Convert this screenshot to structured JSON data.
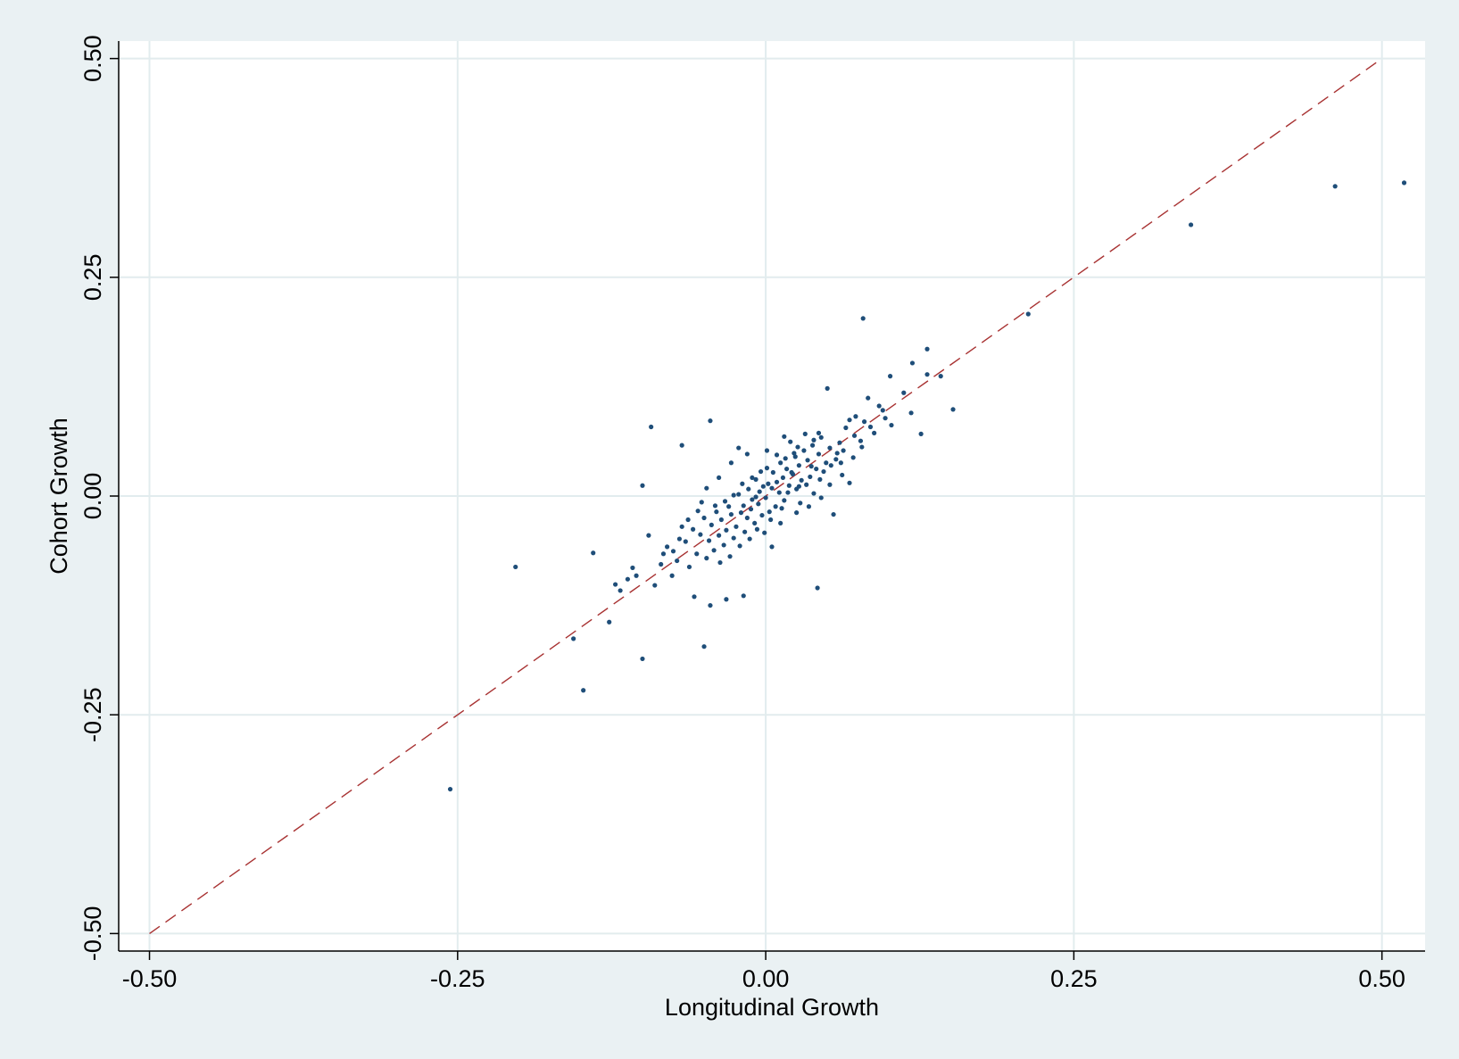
{
  "chart_data": {
    "type": "scatter",
    "title": "",
    "xlabel": "Longitudinal Growth",
    "ylabel": "Cohort Growth",
    "xlim": [
      -0.525,
      0.535
    ],
    "ylim": [
      -0.52,
      0.52
    ],
    "x_ticks": [
      -0.5,
      -0.25,
      0.0,
      0.25,
      0.5
    ],
    "x_tick_labels": [
      "-0.50",
      "-0.25",
      "0.00",
      "0.25",
      "0.50"
    ],
    "y_ticks": [
      -0.5,
      -0.25,
      0.0,
      0.25,
      0.5
    ],
    "y_tick_labels": [
      "-0.50",
      "-0.25",
      "0.00",
      "0.25",
      "0.50"
    ],
    "grid": true,
    "legend": "none",
    "colors": {
      "points": "#1f4e79",
      "reference_line": "#a83232",
      "grid": "#e2ecee",
      "background": "#eaf1f3",
      "plot_area": "#ffffff"
    },
    "reference_line": {
      "style": "dashed",
      "points": [
        [
          -0.5,
          -0.5
        ],
        [
          0.5,
          0.5
        ]
      ]
    },
    "series": [
      {
        "points": [
          [
            0.518,
            0.358
          ],
          [
            0.462,
            0.354
          ],
          [
            0.345,
            0.31
          ],
          [
            0.213,
            0.208
          ],
          [
            0.079,
            0.203
          ],
          [
            -0.256,
            -0.335
          ],
          [
            -0.203,
            -0.081
          ],
          [
            -0.148,
            -0.222
          ],
          [
            -0.156,
            -0.163
          ],
          [
            -0.14,
            -0.065
          ],
          [
            -0.127,
            -0.144
          ],
          [
            -0.1,
            -0.186
          ],
          [
            -0.05,
            -0.172
          ],
          [
            -0.1,
            0.012
          ],
          [
            -0.093,
            0.079
          ],
          [
            -0.068,
            0.058
          ],
          [
            -0.045,
            0.086
          ],
          [
            0.042,
            -0.105
          ],
          [
            0.152,
            0.099
          ],
          [
            0.142,
            0.137
          ],
          [
            0.131,
            0.168
          ],
          [
            0.131,
            0.139
          ],
          [
            0.119,
            0.152
          ],
          [
            0.126,
            0.071
          ],
          [
            0.118,
            0.095
          ],
          [
            0.112,
            0.118
          ],
          [
            0.101,
            0.137
          ],
          [
            0.092,
            0.103
          ],
          [
            0.083,
            0.112
          ],
          [
            0.08,
            0.085
          ],
          [
            0.073,
            0.091
          ],
          [
            0.068,
            0.087
          ],
          [
            0.065,
            0.078
          ],
          [
            0.05,
            0.123
          ],
          [
            0.102,
            0.081
          ],
          [
            0.097,
            0.089
          ],
          [
            0.085,
            0.079
          ],
          [
            0.077,
            0.063
          ],
          [
            0.072,
            0.069
          ],
          [
            0.063,
            0.052
          ],
          [
            0.06,
            0.061
          ],
          [
            0.057,
            0.042
          ],
          [
            0.052,
            0.055
          ],
          [
            0.049,
            0.038
          ],
          [
            0.045,
            0.067
          ],
          [
            0.043,
            0.048
          ],
          [
            0.041,
            0.031
          ],
          [
            0.038,
            0.058
          ],
          [
            0.036,
            0.022
          ],
          [
            0.034,
            0.041
          ],
          [
            0.031,
            0.052
          ],
          [
            0.029,
            0.018
          ],
          [
            0.027,
            0.035
          ],
          [
            0.025,
            0.008
          ],
          [
            0.024,
            0.045
          ],
          [
            0.022,
            0.025
          ],
          [
            0.02,
            0.062
          ],
          [
            0.019,
            0.012
          ],
          [
            0.017,
            0.031
          ],
          [
            0.015,
            -0.005
          ],
          [
            0.014,
            0.021
          ],
          [
            0.012,
            0.038
          ],
          [
            0.011,
            0.004
          ],
          [
            0.009,
            0.016
          ],
          [
            0.008,
            -0.012
          ],
          [
            0.006,
            0.027
          ],
          [
            0.005,
            0.009
          ],
          [
            0.003,
            -0.018
          ],
          [
            0.002,
            0.014
          ],
          [
            0.001,
            0.032
          ],
          [
            0.0,
            -0.002
          ],
          [
            -0.002,
            0.011
          ],
          [
            -0.003,
            -0.022
          ],
          [
            -0.005,
            0.005
          ],
          [
            -0.006,
            -0.009
          ],
          [
            -0.008,
            0.019
          ],
          [
            -0.009,
            -0.031
          ],
          [
            -0.011,
            -0.004
          ],
          [
            -0.012,
            -0.015
          ],
          [
            -0.014,
            0.008
          ],
          [
            -0.015,
            -0.025
          ],
          [
            -0.017,
            -0.041
          ],
          [
            -0.018,
            -0.011
          ],
          [
            -0.02,
            -0.019
          ],
          [
            -0.022,
            0.002
          ],
          [
            -0.024,
            -0.035
          ],
          [
            -0.026,
            -0.048
          ],
          [
            -0.028,
            -0.021
          ],
          [
            -0.03,
            -0.012
          ],
          [
            -0.032,
            -0.039
          ],
          [
            -0.034,
            -0.056
          ],
          [
            -0.036,
            -0.027
          ],
          [
            -0.038,
            -0.045
          ],
          [
            -0.04,
            -0.018
          ],
          [
            -0.042,
            -0.062
          ],
          [
            -0.044,
            -0.033
          ],
          [
            -0.046,
            -0.051
          ],
          [
            -0.048,
            -0.071
          ],
          [
            -0.05,
            -0.025
          ],
          [
            -0.053,
            -0.044
          ],
          [
            -0.056,
            -0.066
          ],
          [
            -0.059,
            -0.038
          ],
          [
            -0.062,
            -0.081
          ],
          [
            -0.065,
            -0.052
          ],
          [
            -0.068,
            -0.035
          ],
          [
            -0.072,
            -0.074
          ],
          [
            -0.076,
            -0.091
          ],
          [
            -0.08,
            -0.058
          ],
          [
            -0.085,
            -0.078
          ],
          [
            -0.09,
            -0.102
          ],
          [
            -0.095,
            -0.045
          ],
          [
            -0.105,
            -0.091
          ],
          [
            -0.108,
            -0.082
          ],
          [
            -0.112,
            -0.095
          ],
          [
            -0.118,
            -0.108
          ],
          [
            -0.122,
            -0.101
          ],
          [
            -0.058,
            -0.115
          ],
          [
            -0.045,
            -0.125
          ],
          [
            -0.032,
            -0.118
          ],
          [
            -0.018,
            -0.114
          ],
          [
            -0.075,
            -0.063
          ],
          [
            -0.052,
            -0.007
          ],
          [
            -0.048,
            0.009
          ],
          [
            -0.038,
            0.021
          ],
          [
            -0.028,
            0.038
          ],
          [
            -0.022,
            0.055
          ],
          [
            -0.015,
            0.048
          ],
          [
            0.001,
            0.052
          ],
          [
            0.015,
            0.068
          ],
          [
            0.032,
            0.071
          ],
          [
            0.005,
            -0.058
          ],
          [
            -0.001,
            -0.042
          ],
          [
            0.012,
            -0.031
          ],
          [
            0.025,
            -0.019
          ],
          [
            0.035,
            -0.012
          ],
          [
            0.045,
            -0.002
          ],
          [
            0.052,
            0.013
          ],
          [
            0.055,
            -0.021
          ],
          [
            0.062,
            0.024
          ],
          [
            0.068,
            0.015
          ],
          [
            0.043,
            0.072
          ],
          [
            0.039,
            0.064
          ],
          [
            0.058,
            0.049
          ],
          [
            0.026,
            0.056
          ],
          [
            0.009,
            0.047
          ],
          [
            0.018,
            0.004
          ],
          [
            0.028,
            -0.008
          ],
          [
            0.021,
            0.027
          ],
          [
            0.033,
            0.013
          ],
          [
            0.047,
            0.028
          ],
          [
            -0.004,
            0.028
          ],
          [
            -0.011,
            0.021
          ],
          [
            -0.019,
            0.014
          ],
          [
            -0.026,
            0.001
          ],
          [
            -0.033,
            -0.006
          ],
          [
            -0.041,
            -0.011
          ],
          [
            -0.055,
            -0.017
          ],
          [
            -0.063,
            -0.027
          ],
          [
            -0.07,
            -0.049
          ],
          [
            -0.083,
            -0.066
          ],
          [
            -0.007,
            -0.038
          ],
          [
            -0.013,
            -0.049
          ],
          [
            -0.021,
            -0.057
          ],
          [
            -0.029,
            -0.069
          ],
          [
            -0.037,
            -0.076
          ],
          [
            0.016,
            0.043
          ],
          [
            0.023,
            0.049
          ],
          [
            0.037,
            0.034
          ],
          [
            0.044,
            0.019
          ],
          [
            0.053,
            0.035
          ],
          [
            0.061,
            0.038
          ],
          [
            0.071,
            0.044
          ],
          [
            0.078,
            0.056
          ],
          [
            0.088,
            0.072
          ],
          [
            0.095,
            0.098
          ],
          [
            0.004,
            -0.027
          ],
          [
            -0.008,
            -0.001
          ],
          [
            0.013,
            -0.014
          ],
          [
            0.027,
            0.011
          ],
          [
            0.039,
            0.003
          ]
        ]
      }
    ]
  }
}
